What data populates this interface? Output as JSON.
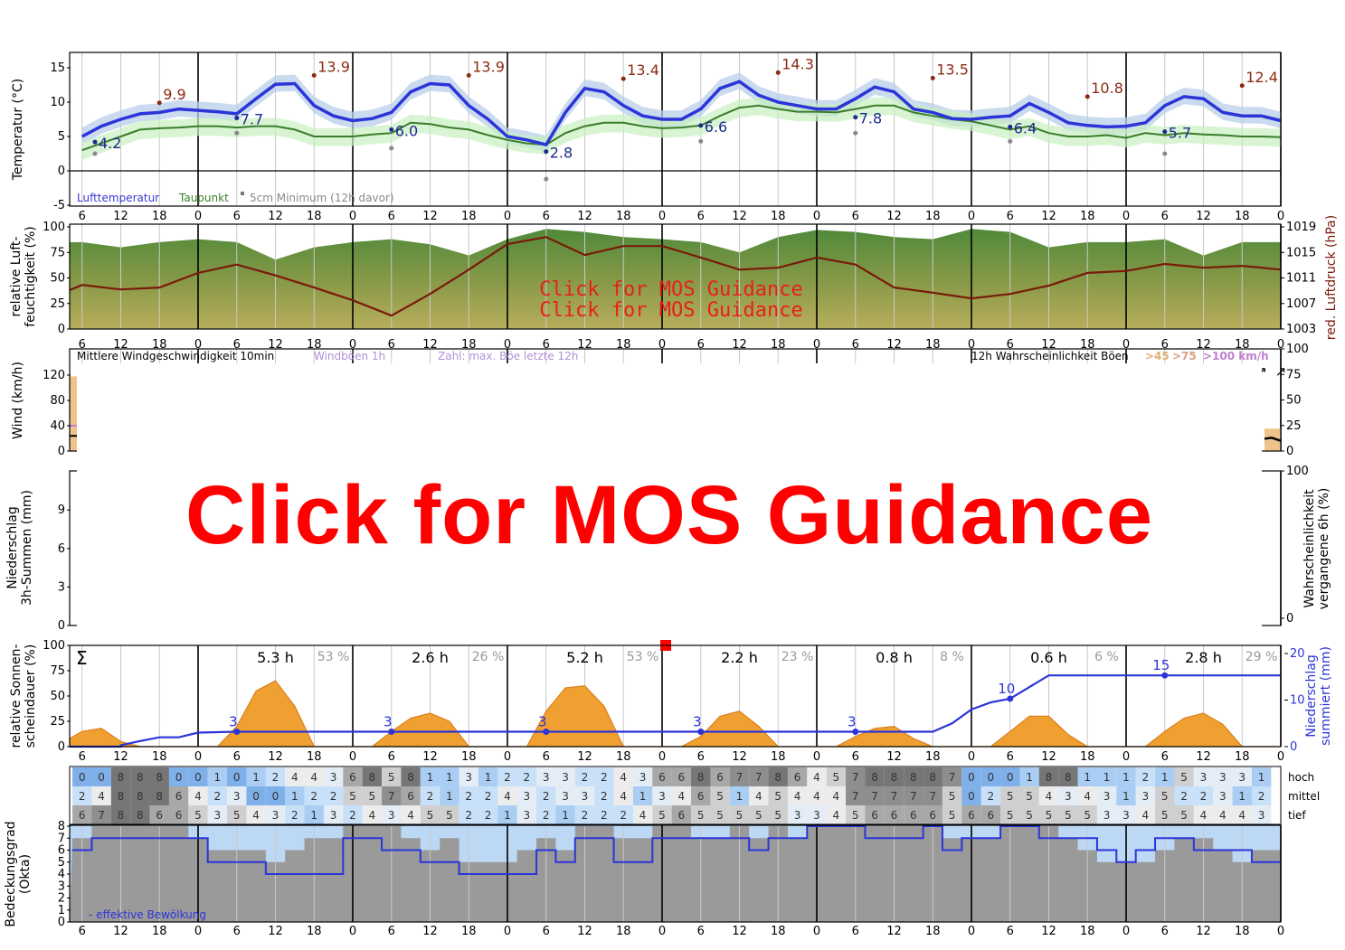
{
  "overlay": {
    "mos_link": "Click for MOS Guidance",
    "mos_link_small": "Click for MOS Guidance"
  },
  "colors": {
    "temperature": "#2b35d8",
    "dewpoint": "#3a7d2a",
    "max_label": "#8b2a12",
    "pressure": "#7a1a0a",
    "sunshine": "#f0a030",
    "precip_sum": "#2b35d8",
    "now_marker": "#ff0000"
  },
  "x_tick_labels": [
    "6",
    "12",
    "18",
    "0",
    "6",
    "12",
    "18",
    "0",
    "6",
    "12",
    "18",
    "0",
    "6",
    "12",
    "18",
    "0",
    "6",
    "12",
    "18",
    "0",
    "6",
    "12",
    "18",
    "0",
    "6",
    "12",
    "18",
    "0",
    "6",
    "12",
    "18",
    "0"
  ],
  "chart_data": [
    {
      "type": "line",
      "ylabel": "Temperatur (°C)",
      "ylim": [
        -5,
        17.5
      ],
      "yticks": [
        15,
        10,
        5,
        0,
        -5
      ],
      "grid": true,
      "legend": {
        "placement": "bottom-left",
        "entries": [
          "Lufttemperatur",
          "Taupunkt",
          "5cm Minimum (12h davor)"
        ]
      },
      "x_hours_start": -18,
      "x_step_hours": 3,
      "series": [
        {
          "name": "Lufttemperatur",
          "values": [
            5,
            6.5,
            7.5,
            8.3,
            8.5,
            9,
            8.8,
            8.6,
            8.3,
            10.5,
            12.6,
            12.7,
            9.5,
            8,
            7.3,
            7.6,
            8.5,
            11.5,
            12.7,
            12.5,
            9.5,
            7.5,
            5,
            4.5,
            3.8,
            8.5,
            12,
            11.5,
            9.5,
            8,
            7.5,
            7.5,
            9,
            12,
            13,
            11,
            10,
            9.5,
            9,
            9,
            10.5,
            12.2,
            11.5,
            9,
            8.5,
            7.6,
            7.5,
            7.8,
            8,
            9.8,
            8.5,
            7,
            6.6,
            6.4,
            6.5,
            7,
            9.5,
            10.8,
            10.5,
            8.5,
            8,
            8,
            7.3
          ]
        },
        {
          "name": "Taupunkt",
          "values": [
            3,
            4,
            5,
            6,
            6.2,
            6.3,
            6.5,
            6.5,
            6.3,
            6.5,
            6.5,
            6,
            5,
            5,
            5,
            5.3,
            5.5,
            7,
            6.8,
            6.3,
            6,
            5.2,
            4.5,
            4,
            3.8,
            5.5,
            6.5,
            7,
            7,
            6.5,
            6.2,
            6.3,
            6.6,
            8,
            9.2,
            9.5,
            9,
            8.6,
            8.6,
            8.5,
            9,
            9.5,
            9.5,
            8.5,
            8,
            7.5,
            7.2,
            6.6,
            6,
            6.5,
            5.5,
            5,
            5,
            5.2,
            4.8,
            5.5,
            5.2,
            5.5,
            5.3,
            5.2,
            5,
            5,
            4.9
          ]
        }
      ],
      "min_labels": [
        {
          "hour": -16,
          "value": "4.2",
          "ground": 2.5
        },
        {
          "hour": 6,
          "value": "7.7",
          "ground": 5.5
        },
        {
          "hour": 30,
          "value": "6.0",
          "ground": 3.3
        },
        {
          "hour": 54,
          "value": "2.8",
          "ground": -1.2
        },
        {
          "hour": 78,
          "value": "6.6",
          "ground": 4.3
        },
        {
          "hour": 102,
          "value": "7.8",
          "ground": 5.5
        },
        {
          "hour": 126,
          "value": "6.4",
          "ground": 4.3
        },
        {
          "hour": 150,
          "value": "5.7",
          "ground": 2.5
        }
      ],
      "max_labels": [
        {
          "hour": -6,
          "value": "9.9"
        },
        {
          "hour": 18,
          "value": "13.9"
        },
        {
          "hour": 42,
          "value": "13.9"
        },
        {
          "hour": 66,
          "value": "13.4"
        },
        {
          "hour": 90,
          "value": "14.3"
        },
        {
          "hour": 114,
          "value": "13.5"
        },
        {
          "hour": 138,
          "value": "10.8"
        },
        {
          "hour": 162,
          "value": "12.4"
        }
      ]
    },
    {
      "type": "area",
      "ylabel": "relative Luft-\nfeuchtigkeit (%)",
      "ylabel_right": "red. Luftdruck (hPa)",
      "ylim": [
        0,
        100
      ],
      "yticks": [
        0,
        25,
        50,
        75,
        100
      ],
      "ylim_right": [
        1003,
        1019
      ],
      "yticks_right": [
        1003,
        1007,
        1011,
        1015,
        1019
      ],
      "x_hours_start": -18,
      "x_step_hours": 6,
      "humidity": [
        85,
        80,
        85,
        88,
        85,
        68,
        80,
        85,
        88,
        83,
        72,
        88,
        98,
        95,
        90,
        88,
        85,
        75,
        90,
        97,
        95,
        90,
        88,
        98,
        95,
        80,
        85,
        85,
        88,
        72,
        85,
        85
      ],
      "pressure": [
        1009.9,
        1009.2,
        1009.5,
        1011.8,
        1013.1,
        1011.4,
        1009.5,
        1007.5,
        1005.1,
        1008.5,
        1012.3,
        1016.3,
        1017.4,
        1014.6,
        1016.0,
        1016.0,
        1014.2,
        1012.3,
        1012.6,
        1014.2,
        1013.1,
        1009.5,
        1008.7,
        1007.8,
        1008.5,
        1009.8,
        1011.8,
        1012.1,
        1013.2,
        1012.6,
        1012.9,
        1012.3
      ]
    },
    {
      "type": "line",
      "ylabel": "Wind (km/h)",
      "yticks": [
        0,
        40,
        80,
        120
      ],
      "ylim": [
        0,
        145
      ],
      "yticks_right": [
        0,
        25,
        50,
        75,
        100
      ],
      "legend": [
        "Mittlere Windgeschwindigkeit 10min",
        "Windböen 1h",
        "Zahl: max. Böe letzte 12h"
      ],
      "legend_right": {
        "title": "12h Wahrscheinlichkeit Böen",
        "levels": [
          ">45",
          ">75",
          ">100 km/h"
        ],
        "colors": [
          "#e0b070",
          "#d8a080",
          "#c080d0"
        ]
      },
      "direction_arrows": [
        "→",
        "↗",
        "↗",
        "↗",
        "↗",
        "↗",
        "↗",
        "↗",
        "↗",
        "↗",
        "↑",
        "↑",
        "↖",
        "↖",
        "↖",
        "↑",
        "↗",
        "↗",
        "→",
        "→",
        "↗",
        "↗",
        "↗",
        "↗",
        "↖",
        "↖",
        "↖",
        "↖",
        "↖",
        "↖",
        "↖",
        "↖",
        "↖",
        "↖",
        "↖",
        "↖",
        "↑",
        "↑",
        "↑",
        "↗",
        "↗",
        "↑",
        "↗",
        "↑",
        "↖",
        "↗",
        "↗",
        "↗",
        "→",
        "↗",
        "↗",
        "↗",
        "↗",
        "↗",
        "↗",
        "↗",
        "↗",
        "↗",
        "↗",
        "↗",
        "↗",
        "↗",
        "↗"
      ]
    },
    {
      "type": "bar",
      "ylabel": "Niederschlag\n3h-Summen (mm)",
      "ylabel_right": "Wahrscheinlichkeit\nvergangene 6h (%)",
      "yticks": [
        0,
        3,
        6,
        9
      ],
      "yticks_right": [
        0,
        100
      ]
    },
    {
      "type": "area",
      "ylabel": "relative Sonnen-\nscheindauer (%)",
      "ylabel_right": "Niederschlag\nsummiert (mm)",
      "ylim": [
        0,
        100
      ],
      "yticks": [
        0,
        25,
        50,
        75,
        100
      ],
      "yticks_right": [
        0,
        10,
        20
      ],
      "sum_symbol": "Σ",
      "x_hours_start": -18,
      "x_step_hours": 3,
      "sunshine": [
        15,
        18,
        5,
        0,
        0,
        0,
        0,
        0,
        20,
        55,
        65,
        40,
        0,
        0,
        0,
        0,
        15,
        28,
        33,
        25,
        0,
        0,
        0,
        0,
        35,
        58,
        60,
        40,
        0,
        0,
        0,
        0,
        10,
        30,
        35,
        20,
        0,
        0,
        0,
        0,
        10,
        18,
        20,
        8,
        0,
        0,
        0,
        0,
        15,
        30,
        30,
        12,
        0,
        0,
        0,
        0,
        15,
        28,
        33,
        22,
        0,
        0,
        0
      ],
      "precip_sum": [
        0,
        0,
        0.3,
        1.2,
        2,
        2,
        3,
        3.1,
        3.2,
        3.2,
        3.2,
        3.2,
        3.2,
        3.2,
        3.2,
        3.2,
        3.2,
        3.2,
        3.2,
        3.2,
        3.2,
        3.2,
        3.2,
        3.2,
        3.2,
        3.2,
        3.2,
        3.2,
        3.2,
        3.2,
        3.2,
        3.2,
        3.2,
        3.2,
        3.2,
        3.2,
        3.2,
        3.2,
        3.2,
        3.2,
        3.2,
        3.2,
        3.2,
        3.2,
        3.2,
        5,
        8,
        9.5,
        10.3,
        12.8,
        15.3,
        15.3,
        15.3,
        15.3,
        15.3,
        15.3,
        15.3,
        15.3,
        15.3,
        15.3,
        15.3,
        15.3,
        15.3
      ],
      "precip_labels": [
        {
          "hour": 6,
          "value": "3"
        },
        {
          "hour": 30,
          "value": "3"
        },
        {
          "hour": 54,
          "value": "3"
        },
        {
          "hour": 78,
          "value": "3"
        },
        {
          "hour": 102,
          "value": "3"
        },
        {
          "hour": 126,
          "value": "10"
        },
        {
          "hour": 150,
          "value": "15"
        }
      ],
      "daily_sunshine": [
        {
          "hours": "5.3 h",
          "percent": "53 %"
        },
        {
          "hours": "2.6 h",
          "percent": "26 %"
        },
        {
          "hours": "5.2 h",
          "percent": "53 %"
        },
        {
          "hours": "2.2 h",
          "percent": "23 %"
        },
        {
          "hours": "0.8 h",
          "percent": "8 %"
        },
        {
          "hours": "0.6 h",
          "percent": "6 %"
        },
        {
          "hours": "2.8 h",
          "percent": "29 %"
        }
      ],
      "now_hour": 72
    },
    {
      "type": "heatmap",
      "row_labels": [
        "hoch",
        "mittel",
        "tief"
      ],
      "x_hours_start": -18,
      "x_step_hours": 3,
      "rows": [
        [
          0,
          0,
          8,
          8,
          8,
          0,
          0,
          1,
          0,
          1,
          2,
          4,
          4,
          3,
          6,
          8,
          5,
          8,
          1,
          1,
          3,
          1,
          2,
          2,
          3,
          3,
          2,
          2,
          4,
          3,
          6,
          6,
          8,
          6,
          7,
          7,
          8,
          6,
          4,
          5,
          7,
          8,
          8,
          8,
          8,
          7,
          0,
          0,
          0,
          1,
          8,
          8,
          1,
          1,
          1,
          2,
          1,
          5,
          3,
          3,
          3,
          1
        ],
        [
          2,
          4,
          8,
          8,
          8,
          6,
          4,
          2,
          3,
          0,
          0,
          1,
          2,
          2,
          5,
          5,
          7,
          6,
          2,
          1,
          2,
          2,
          4,
          3,
          2,
          3,
          3,
          2,
          4,
          1,
          3,
          4,
          6,
          5,
          1,
          4,
          5,
          4,
          4,
          4,
          7,
          7,
          7,
          7,
          7,
          5,
          0,
          2,
          5,
          5,
          4,
          3,
          4,
          3,
          1,
          3,
          5,
          2,
          2,
          3,
          1,
          2
        ],
        [
          6,
          7,
          8,
          8,
          6,
          6,
          5,
          3,
          5,
          4,
          3,
          2,
          1,
          3,
          2,
          4,
          3,
          4,
          5,
          5,
          2,
          2,
          1,
          3,
          2,
          1,
          2,
          2,
          2,
          4,
          5,
          6,
          5,
          5,
          5,
          5,
          5,
          3,
          3,
          4,
          5,
          6,
          6,
          6,
          6,
          5,
          6,
          6,
          5,
          5,
          5,
          5,
          5,
          3,
          3,
          4,
          5,
          5,
          4,
          4,
          4,
          3
        ]
      ]
    },
    {
      "type": "area",
      "ylabel": "Bedeckungsgrad\n(Okta)",
      "ylim": [
        0,
        8
      ],
      "yticks": [
        0,
        1,
        2,
        3,
        4,
        5,
        6,
        7,
        8
      ],
      "legend": "- effektive Bewölkung",
      "x_hours_start": -18,
      "x_step_hours": 3,
      "total": [
        7,
        8,
        8,
        8,
        8,
        8,
        7,
        6,
        6,
        6,
        5,
        6,
        7,
        7,
        8,
        8,
        8,
        7,
        6,
        7,
        5,
        5,
        5,
        6,
        7,
        6,
        8,
        8,
        7,
        7,
        8,
        8,
        7,
        7,
        8,
        7,
        8,
        7,
        8,
        8,
        8,
        8,
        8,
        8,
        8,
        7,
        7,
        7,
        8,
        8,
        8,
        7,
        6,
        5,
        5,
        5,
        6,
        7,
        7,
        6,
        5,
        6,
        6
      ],
      "effective": [
        6,
        7,
        7,
        7,
        7,
        7,
        7,
        5,
        5,
        5,
        4,
        4,
        4,
        4,
        7,
        7,
        6,
        6,
        5,
        5,
        4,
        4,
        4,
        4,
        6,
        5,
        7,
        7,
        5,
        5,
        7,
        7,
        7,
        7,
        7,
        6,
        7,
        7,
        8,
        8,
        8,
        7,
        7,
        7,
        8,
        6,
        7,
        7,
        8,
        8,
        7,
        7,
        7,
        6,
        5,
        6,
        7,
        7,
        6,
        6,
        6,
        5,
        5
      ]
    }
  ]
}
